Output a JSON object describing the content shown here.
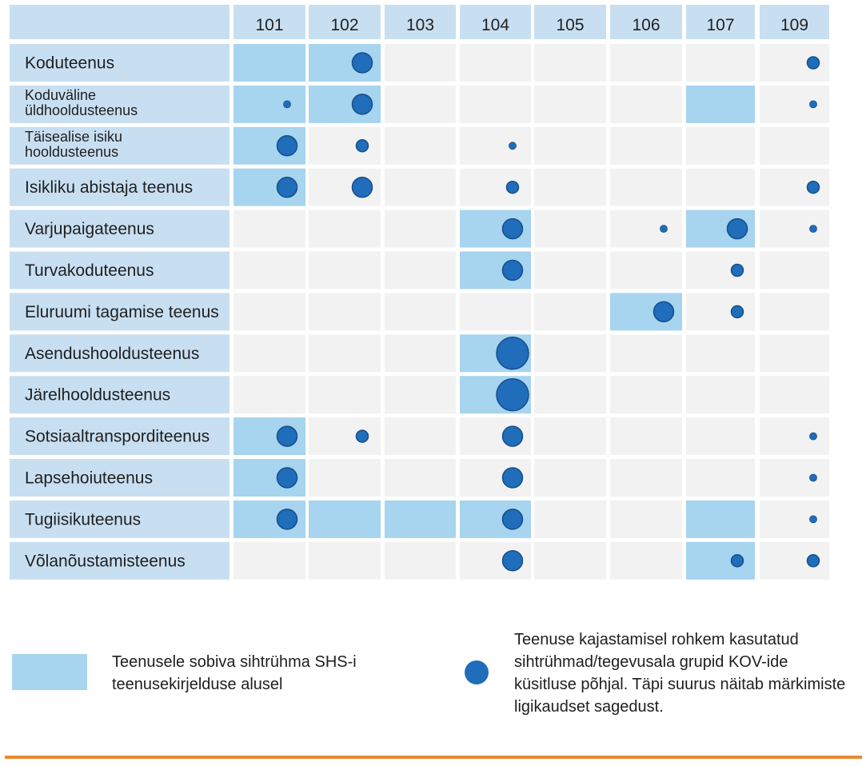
{
  "colors": {
    "header_bg": "#c8dff2",
    "label_bg": "#c8dff2",
    "cell_bg": "#f2f2f3",
    "highlight_bg": "#a7d4ee",
    "dot": "#1f6dbb",
    "dot_stroke": "#174f8a",
    "rule": "#e8892f"
  },
  "chart_data": {
    "type": "table",
    "columns": [
      "101",
      "102",
      "103",
      "104",
      "105",
      "106",
      "107",
      "109"
    ],
    "rows": [
      {
        "label": [
          "Koduteenus"
        ],
        "highlight": [
          1,
          1,
          0,
          0,
          0,
          0,
          0,
          0
        ],
        "dots": [
          0,
          3,
          0,
          0,
          0,
          0,
          0,
          2
        ]
      },
      {
        "label": [
          "Koduväline",
          "üldhooldusteenus"
        ],
        "highlight": [
          1,
          1,
          0,
          0,
          0,
          0,
          1,
          0
        ],
        "dots": [
          1,
          3,
          0,
          0,
          0,
          0,
          0,
          1
        ]
      },
      {
        "label": [
          "Täisealise isiku",
          "hooldusteenus"
        ],
        "highlight": [
          1,
          0,
          0,
          0,
          0,
          0,
          0,
          0
        ],
        "dots": [
          3,
          2,
          0,
          1,
          0,
          0,
          0,
          0
        ]
      },
      {
        "label": [
          "Isikliku abistaja teenus"
        ],
        "highlight": [
          1,
          0,
          0,
          0,
          0,
          0,
          0,
          0
        ],
        "dots": [
          3,
          3,
          0,
          2,
          0,
          0,
          0,
          2
        ]
      },
      {
        "label": [
          "Varjupaigateenus"
        ],
        "highlight": [
          0,
          0,
          0,
          1,
          0,
          0,
          1,
          0
        ],
        "dots": [
          0,
          0,
          0,
          3,
          0,
          1,
          3,
          1
        ]
      },
      {
        "label": [
          "Turvakoduteenus"
        ],
        "highlight": [
          0,
          0,
          0,
          1,
          0,
          0,
          0,
          0
        ],
        "dots": [
          0,
          0,
          0,
          3,
          0,
          0,
          2,
          0
        ]
      },
      {
        "label": [
          "Eluruumi tagamise teenus"
        ],
        "highlight": [
          0,
          0,
          0,
          0,
          0,
          1,
          0,
          0
        ],
        "dots": [
          0,
          0,
          0,
          0,
          0,
          3,
          2,
          0
        ]
      },
      {
        "label": [
          "Asendushooldusteenus"
        ],
        "highlight": [
          0,
          0,
          0,
          1,
          0,
          0,
          0,
          0
        ],
        "dots": [
          0,
          0,
          0,
          4,
          0,
          0,
          0,
          0
        ]
      },
      {
        "label": [
          "Järelhooldusteenus"
        ],
        "highlight": [
          0,
          0,
          0,
          1,
          0,
          0,
          0,
          0
        ],
        "dots": [
          0,
          0,
          0,
          4,
          0,
          0,
          0,
          0
        ]
      },
      {
        "label": [
          "Sotsiaaltranspordi­teenus"
        ],
        "highlight": [
          1,
          0,
          0,
          0,
          0,
          0,
          0,
          0
        ],
        "dots": [
          3,
          2,
          0,
          3,
          0,
          0,
          0,
          1
        ]
      },
      {
        "label": [
          "Lapsehoiuteenus"
        ],
        "highlight": [
          1,
          0,
          0,
          0,
          0,
          0,
          0,
          0
        ],
        "dots": [
          3,
          0,
          0,
          3,
          0,
          0,
          0,
          1
        ]
      },
      {
        "label": [
          "Tugiisikuteenus"
        ],
        "highlight": [
          1,
          1,
          1,
          1,
          0,
          0,
          1,
          0
        ],
        "dots": [
          3,
          0,
          0,
          3,
          0,
          0,
          0,
          1
        ]
      },
      {
        "label": [
          "Võlanõustamisteenus"
        ],
        "highlight": [
          0,
          0,
          0,
          0,
          0,
          0,
          1,
          0
        ],
        "dots": [
          0,
          0,
          0,
          3,
          0,
          0,
          2,
          2
        ]
      }
    ]
  },
  "legend": {
    "highlight_text": "Teenusele sobiva sihtrühma SHS-i teenusekirjelduse alusel",
    "dot_text": "Teenuse kajastamisel rohkem kasutatud sihtrühmad/tegevusala grupid KOV-ide küsitluse põhjal. Täpi suurus näitab märkimiste ligikaudset sagedust."
  }
}
